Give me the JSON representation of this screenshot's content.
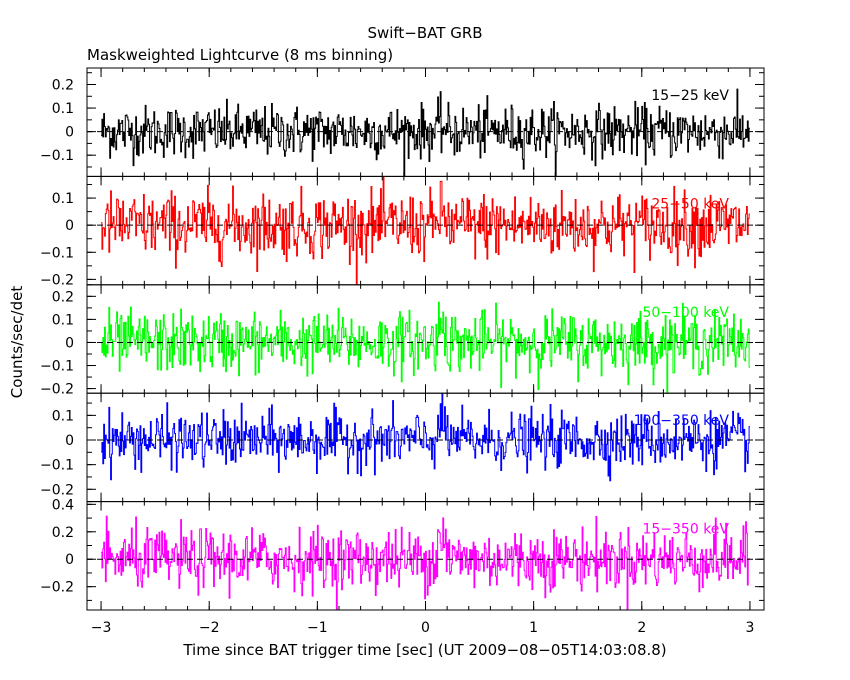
{
  "chart_data": {
    "type": "line",
    "title": "Swift−BAT GRB",
    "subtitle": "Maskweighted Lightcurve (8 ms binning)",
    "xlabel": "Time since BAT trigger time [sec] (UT 2009−08−05T14:03:08.8)",
    "ylabel": "Counts/sec/det",
    "xlim": [
      -3.13,
      3.13
    ],
    "x_ticks": [
      -3,
      -2,
      -1,
      0,
      1,
      2,
      3
    ],
    "x_tick_labels": [
      "−3",
      "−2",
      "−1",
      "0",
      "1",
      "2",
      "3"
    ],
    "bin_size_sec": 0.008,
    "x_range": [
      -3.0,
      3.0
    ],
    "panels": [
      {
        "name": "15−25 keV",
        "color": "#000000",
        "ylim": [
          -0.19,
          0.27
        ],
        "y_ticks": [
          -0.1,
          0,
          0.1,
          0.2
        ],
        "y_tick_labels": [
          "−0.1",
          "0",
          "0.1",
          "0.2"
        ],
        "noise_sigma": 0.055,
        "spike_height": 0.02
      },
      {
        "name": "25−50 keV",
        "color": "#ff0000",
        "ylim": [
          -0.22,
          0.18
        ],
        "y_ticks": [
          -0.2,
          -0.1,
          0,
          0.1
        ],
        "y_tick_labels": [
          "−0.2",
          "−0.1",
          "0",
          "0.1"
        ],
        "noise_sigma": 0.06,
        "spike_height": 0.04
      },
      {
        "name": "50−100 keV",
        "color": "#00ff00",
        "ylim": [
          -0.22,
          0.25
        ],
        "y_ticks": [
          -0.2,
          -0.1,
          0,
          0.1,
          0.2
        ],
        "y_tick_labels": [
          "−0.2",
          "−0.1",
          "0",
          "0.1",
          "0.2"
        ],
        "noise_sigma": 0.065,
        "spike_height": 0.08
      },
      {
        "name": "100−350 keV",
        "color": "#0000ff",
        "ylim": [
          -0.25,
          0.19
        ],
        "y_ticks": [
          -0.2,
          -0.1,
          0,
          0.1
        ],
        "y_tick_labels": [
          "−0.2",
          "−0.1",
          "0",
          "0.1"
        ],
        "noise_sigma": 0.055,
        "spike_height": 0.06
      },
      {
        "name": "15−350 keV",
        "color": "#ff00ff",
        "ylim": [
          -0.37,
          0.42
        ],
        "y_ticks": [
          -0.2,
          0,
          0.2,
          0.4
        ],
        "y_tick_labels": [
          "−0.2",
          "0",
          "0.2",
          "0.4"
        ],
        "noise_sigma": 0.11,
        "spike_height": 0.18
      }
    ]
  }
}
